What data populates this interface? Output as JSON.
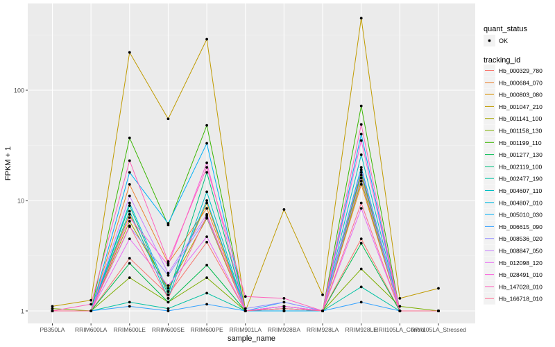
{
  "chart_data": {
    "type": "line",
    "xlabel": "sample_name",
    "ylabel": "FPKM + 1",
    "yscale": "log10",
    "ylim": [
      0.77,
      613
    ],
    "yticks": [
      "1",
      "10",
      "100"
    ],
    "ytick_values": [
      1,
      10,
      100
    ],
    "grid": true,
    "legend_placement": "right",
    "categories": [
      "PB350LA",
      "RRIM600LA",
      "RRIM600LE",
      "RRIM600SE",
      "RRIM600PE",
      "RRIM901LA",
      "RRIM928BA",
      "RRIM928LA",
      "RRIM928LE",
      "RRII105LA_Control",
      "RRII105LA_Stressed"
    ],
    "shape_legend": {
      "title": "quant_status",
      "entries": [
        "OK"
      ]
    },
    "color_legend_title": "tracking_id",
    "series": [
      {
        "name": "Hb_000329_780",
        "color": "#F8766D",
        "values": [
          1,
          1,
          3.0,
          1.4,
          4.2,
          1,
          1.1,
          1,
          4.5,
          1,
          1
        ]
      },
      {
        "name": "Hb_000684_070",
        "color": "#EA8331",
        "values": [
          1,
          1,
          14,
          2.7,
          8.5,
          1,
          1.1,
          1,
          14,
          1,
          1
        ]
      },
      {
        "name": "Hb_000803_080",
        "color": "#D89000",
        "values": [
          1,
          1,
          7.5,
          1.5,
          9.5,
          1,
          1.05,
          1,
          17,
          1,
          1
        ]
      },
      {
        "name": "Hb_001047_210",
        "color": "#C09B00",
        "values": [
          1.1,
          1.25,
          220,
          55,
          290,
          1,
          8.3,
          1.4,
          450,
          1.3,
          1.6
        ]
      },
      {
        "name": "Hb_001141_100",
        "color": "#A3A500",
        "values": [
          1,
          1,
          6.5,
          1.6,
          6.9,
          1,
          1.05,
          1,
          15,
          1,
          1
        ]
      },
      {
        "name": "Hb_001158_130",
        "color": "#7CAE00",
        "values": [
          1.05,
          1,
          2.0,
          1.2,
          2.0,
          1,
          1,
          1,
          2.4,
          1.1,
          1
        ]
      },
      {
        "name": "Hb_001199_110",
        "color": "#39B600",
        "values": [
          1,
          1,
          37,
          6,
          48,
          1,
          1,
          1,
          72,
          1,
          1
        ]
      },
      {
        "name": "Hb_001277_130",
        "color": "#00BB4E",
        "values": [
          1,
          1,
          2.7,
          1.2,
          2.6,
          1,
          1,
          1,
          4.1,
          1,
          1
        ]
      },
      {
        "name": "Hb_002119_100",
        "color": "#00BF7D",
        "values": [
          1,
          1,
          9,
          1.4,
          18,
          1,
          1,
          1,
          18,
          1,
          1
        ]
      },
      {
        "name": "Hb_002477_190",
        "color": "#00C1A3",
        "values": [
          1,
          1,
          1.2,
          1.05,
          1.45,
          1,
          1,
          1,
          1.65,
          1,
          1
        ]
      },
      {
        "name": "Hb_004607_110",
        "color": "#00BFC4",
        "values": [
          1,
          1,
          8,
          1.3,
          12,
          1,
          1.05,
          1,
          26,
          1,
          1
        ]
      },
      {
        "name": "Hb_004807_010",
        "color": "#00BAE0",
        "values": [
          1,
          1,
          9.5,
          1.5,
          10,
          1,
          1.1,
          1,
          20,
          1,
          1
        ]
      },
      {
        "name": "Hb_005010_030",
        "color": "#00B0F6",
        "values": [
          1,
          1,
          18,
          6.2,
          33,
          1,
          1,
          1,
          40,
          1,
          1
        ]
      },
      {
        "name": "Hb_006615_090",
        "color": "#35A2FF",
        "values": [
          1,
          1,
          1.1,
          1,
          1.15,
          1,
          1.2,
          1,
          1.2,
          1,
          1
        ]
      },
      {
        "name": "Hb_008536_020",
        "color": "#9590FF",
        "values": [
          1,
          1,
          5.8,
          2.1,
          7,
          1.05,
          1.2,
          1,
          16,
          1,
          1
        ]
      },
      {
        "name": "Hb_008847_050",
        "color": "#C77CFF",
        "values": [
          1,
          1,
          11,
          2.2,
          7.5,
          1,
          1.1,
          1,
          19,
          1,
          1
        ]
      },
      {
        "name": "Hb_012098_120",
        "color": "#E76BF3",
        "values": [
          1,
          1,
          4.5,
          1.7,
          4.7,
          1,
          1.1,
          1,
          8.5,
          1,
          1
        ]
      },
      {
        "name": "Hb_028491_010",
        "color": "#FA62DB",
        "values": [
          1,
          1,
          7,
          2.6,
          22,
          1,
          1.1,
          1,
          35,
          1,
          1
        ]
      },
      {
        "name": "Hb_147028_010",
        "color": "#FF62BC",
        "values": [
          1,
          1.15,
          23,
          2.8,
          20,
          1.35,
          1.3,
          1,
          49,
          1,
          1
        ]
      },
      {
        "name": "Hb_166718_010",
        "color": "#FF6C91",
        "values": [
          1,
          1,
          5.9,
          1.3,
          7.3,
          1,
          1.05,
          1,
          9.5,
          1,
          1
        ]
      }
    ]
  }
}
